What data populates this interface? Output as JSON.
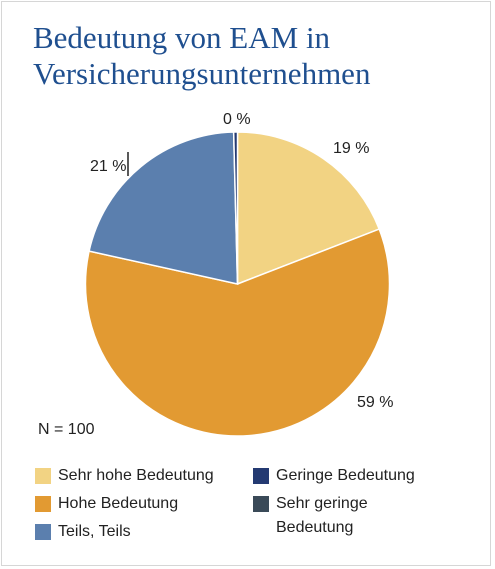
{
  "chart_data": {
    "type": "pie",
    "title": "Bedeutung von EAM in Versicherungsunternehmen",
    "note": "N = 100",
    "slices": [
      {
        "name": "Sehr hohe Bedeutung",
        "value": 19,
        "label": "19 %",
        "color": "#f2d383"
      },
      {
        "name": "Hohe Bedeutung",
        "value": 59,
        "label": "59 %",
        "color": "#e29a32"
      },
      {
        "name": "Teils, Teils",
        "value": 21,
        "label": "21 %",
        "color": "#5b7fae"
      },
      {
        "name": "Geringe Bedeutung",
        "value": 0.4,
        "label": "0 %",
        "color": "#243a72"
      },
      {
        "name": "Sehr geringe Bedeutung",
        "value": 0,
        "label": "",
        "color": "#3a4a58"
      }
    ],
    "legend_placement": "bottom"
  },
  "legend": [
    {
      "label": "Sehr hohe Bedeutung",
      "color": "#f2d383"
    },
    {
      "label": "Hohe Bedeutung",
      "color": "#e29a32"
    },
    {
      "label": "Teils, Teils",
      "color": "#5b7fae"
    },
    {
      "label": "Geringe Bedeutung",
      "color": "#243a72"
    },
    {
      "label": "Sehr geringe",
      "label_line2": "Bedeutung",
      "color": "#3a4a58"
    }
  ]
}
